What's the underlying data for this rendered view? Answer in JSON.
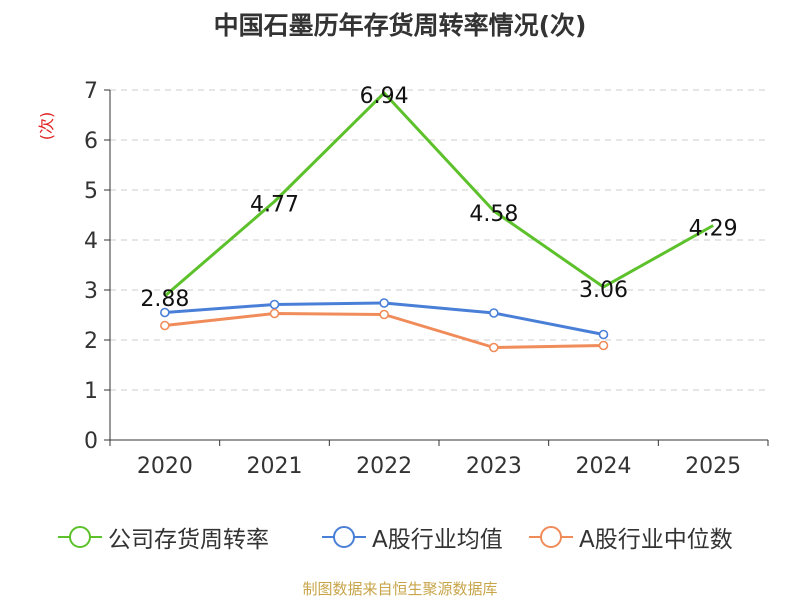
{
  "title": "中国石墨历年存货周转率情况(次)",
  "source": "制图数据来自恒生聚源数据库",
  "chart_data": {
    "type": "line",
    "title": "中国石墨历年存货周转率情况(次)",
    "xlabel": "",
    "ylabel": "(次)",
    "categories": [
      "2020",
      "2021",
      "2022",
      "2023",
      "2024",
      "2025"
    ],
    "ylim": [
      0,
      7
    ],
    "yticks": [
      0,
      1,
      2,
      3,
      4,
      5,
      6,
      7
    ],
    "grid": true,
    "legend_position": "bottom",
    "series": [
      {
        "name": "公司存货周转率",
        "color": "#5cc12a",
        "values": [
          2.88,
          4.77,
          6.94,
          4.58,
          3.06,
          4.29
        ],
        "labels": [
          "2.88",
          "4.77",
          "6.94",
          "4.58",
          "3.06",
          "4.29"
        ],
        "show_labels": true,
        "show_markers": false
      },
      {
        "name": "A股行业均值",
        "color": "#4a7fd8",
        "values": [
          2.55,
          2.71,
          2.74,
          2.54,
          2.11,
          null
        ],
        "show_labels": false,
        "show_markers": true
      },
      {
        "name": "A股行业中位数",
        "color": "#f08c5a",
        "values": [
          2.29,
          2.53,
          2.51,
          1.85,
          1.89,
          null
        ],
        "show_labels": false,
        "show_markers": true
      }
    ]
  }
}
